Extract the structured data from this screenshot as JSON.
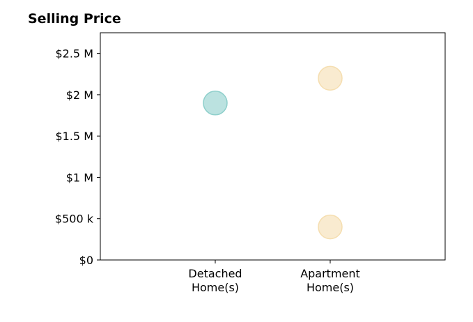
{
  "chart_data": {
    "type": "scatter",
    "title": "Selling Price",
    "xlabel": "",
    "ylabel": "",
    "categories": [
      "Detached\nHome(s)",
      "Apartment\nHome(s)"
    ],
    "xlim": [
      -1,
      2
    ],
    "ylim": [
      0,
      2750000
    ],
    "yticks": [
      {
        "value": 0,
        "label": "$0"
      },
      {
        "value": 500000,
        "label": "$500 k"
      },
      {
        "value": 1000000,
        "label": "$1 M"
      },
      {
        "value": 1500000,
        "label": "$1.5 M"
      },
      {
        "value": 2000000,
        "label": "$2 M"
      },
      {
        "value": 2500000,
        "label": "$2.5 M"
      }
    ],
    "grid": false,
    "series": [
      {
        "color": "#8ecfcb",
        "points": [
          {
            "x": 0,
            "y": 1900000
          }
        ]
      },
      {
        "color": "#f5deb0",
        "points": [
          {
            "x": 1,
            "y": 2200000
          },
          {
            "x": 1,
            "y": 400000
          }
        ]
      }
    ]
  }
}
